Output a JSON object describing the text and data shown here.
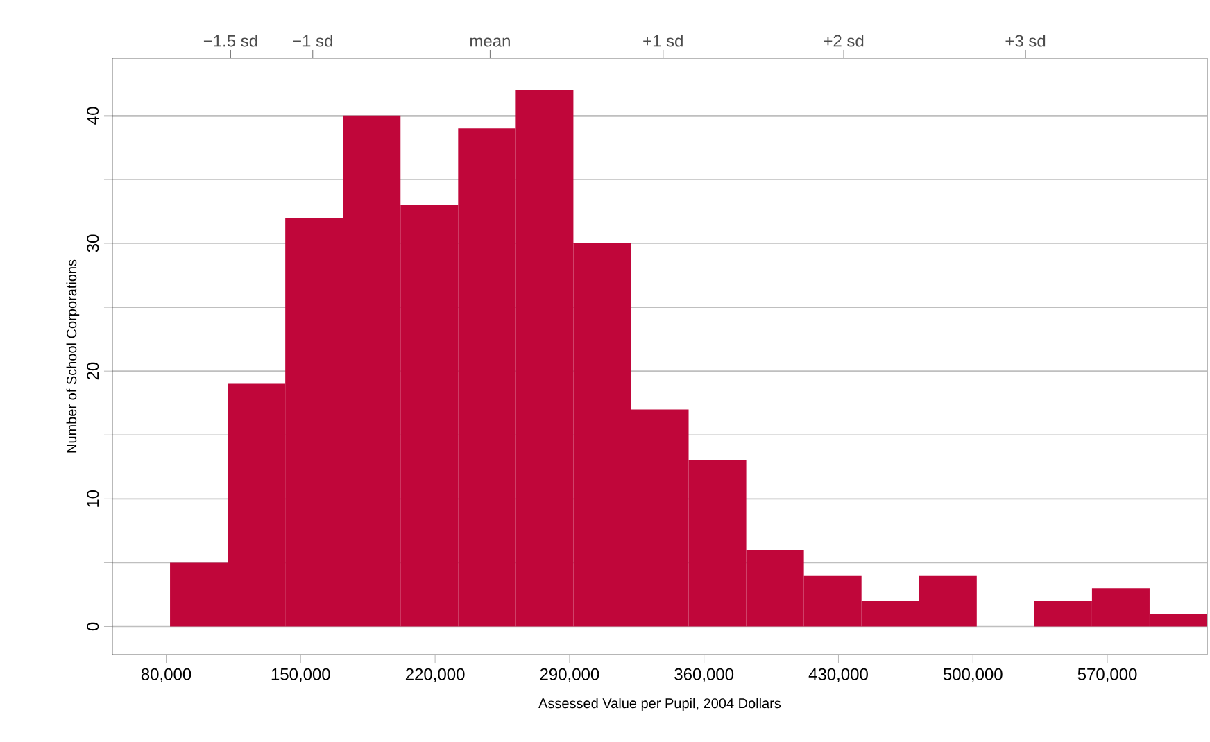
{
  "chart_data": {
    "type": "histogram",
    "xlabel": "Assessed Value per Pupil, 2004 Dollars",
    "ylabel": "Number of School Corporations",
    "bins": [
      82000,
      112000,
      142000,
      172000,
      202000,
      232000,
      262000,
      292000,
      322000,
      352000,
      382000,
      412000,
      442000,
      472000,
      502000,
      532000,
      562000,
      592000,
      622000
    ],
    "values": [
      5,
      19,
      32,
      40,
      33,
      39,
      42,
      30,
      17,
      13,
      6,
      4,
      2,
      4,
      0,
      2,
      3,
      1
    ],
    "color": "#c0063a",
    "xlim": [
      52000,
      622000
    ],
    "xticks": [
      {
        "value": 80000,
        "label": "80,000"
      },
      {
        "value": 150000,
        "label": "150,000"
      },
      {
        "value": 220000,
        "label": "220,000"
      },
      {
        "value": 290000,
        "label": "290,000"
      },
      {
        "value": 360000,
        "label": "360,000"
      },
      {
        "value": 430000,
        "label": "430,000"
      },
      {
        "value": 500000,
        "label": "500,000"
      },
      {
        "value": 570000,
        "label": "570,000"
      }
    ],
    "annotations": [
      "−1.5 sd",
      "−1 sd",
      "mean",
      "+1 sd",
      "+2 sd",
      "+3 sd"
    ],
    "ylim": [
      -2.2,
      44.5
    ],
    "yticks": [
      0,
      {
        "value": 5,
        "label": null
      },
      10,
      {
        "value": 15,
        "label": null
      },
      20,
      {
        "value": 25,
        "label": null
      },
      30,
      {
        "value": 35,
        "label": null
      },
      40
    ],
    "grid": "y"
  }
}
